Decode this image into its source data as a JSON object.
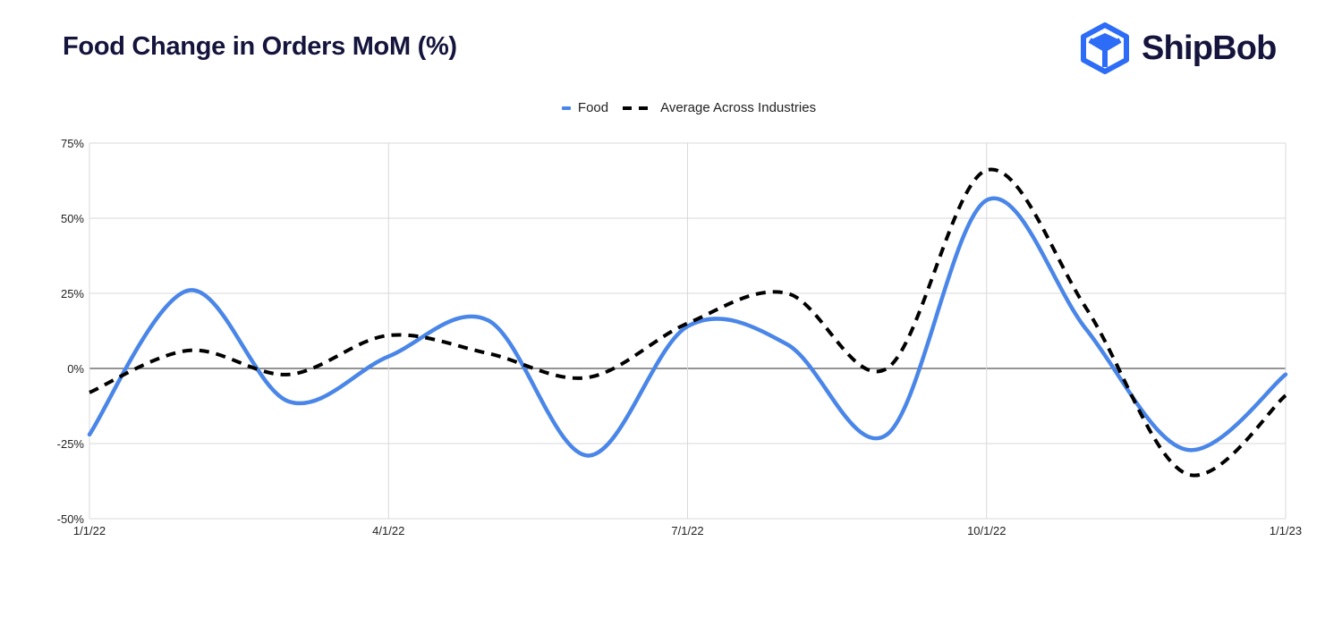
{
  "header": {
    "title": "Food Change in Orders MoM (%)"
  },
  "brand": {
    "name": "ShipBob",
    "icon": "shipbob-cube-logo",
    "color": "#2d6cf6"
  },
  "chart_data": {
    "type": "line",
    "title": "Food Change in Orders MoM (%)",
    "xlabel": "",
    "ylabel": "",
    "x_ticks": [
      "1/1/22",
      "4/1/22",
      "7/1/22",
      "10/1/22",
      "1/1/23"
    ],
    "y_ticks": [
      "75%",
      "50%",
      "25%",
      "0%",
      "-25%",
      "-50%"
    ],
    "y_tick_values": [
      75,
      50,
      25,
      0,
      -25,
      -50
    ],
    "ylim": [
      -50,
      75
    ],
    "x_months": [
      0,
      12
    ],
    "grid": true,
    "legend_position": "top-center",
    "series": [
      {
        "name": "Food",
        "color": "#4a86e8",
        "style": "solid",
        "x_months": [
          0,
          1,
          2,
          3,
          4,
          5,
          6,
          7,
          8,
          9,
          10,
          11,
          12
        ],
        "values": [
          -22,
          26,
          -11,
          4,
          16,
          -29,
          14,
          8,
          -22,
          56,
          13,
          -27,
          -2
        ]
      },
      {
        "name": "Average Across Industries",
        "color": "#000000",
        "style": "dashed",
        "x_months": [
          0,
          1,
          2,
          3,
          4,
          5,
          6,
          7,
          8,
          9,
          10,
          11,
          12
        ],
        "values": [
          -8,
          6,
          -2,
          11,
          5,
          -3,
          15,
          25,
          0,
          66,
          20,
          -35,
          -9
        ]
      }
    ]
  }
}
